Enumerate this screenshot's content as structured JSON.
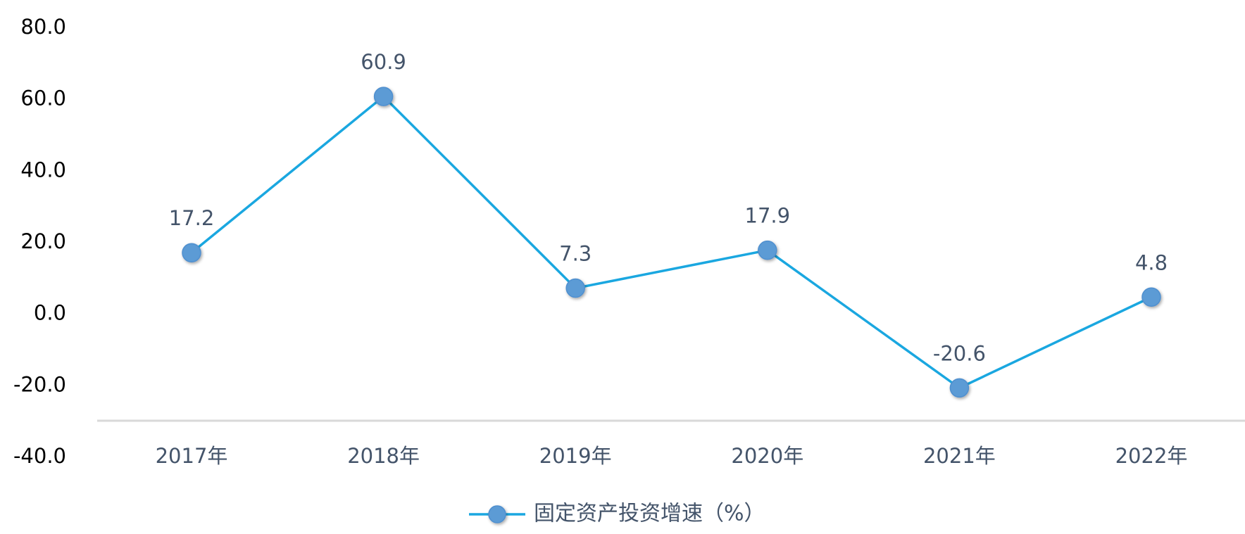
{
  "chart_data": {
    "type": "line",
    "categories": [
      "2017年",
      "2018年",
      "2019年",
      "2020年",
      "2021年",
      "2022年"
    ],
    "series": [
      {
        "name": "固定资产投资增速（%）",
        "values": [
          17.2,
          60.9,
          7.3,
          17.9,
          -20.6,
          4.8
        ],
        "labels": [
          "17.2",
          "60.9",
          "7.3",
          "17.9",
          "-20.6",
          "4.8"
        ],
        "color": "#1aa7e0",
        "marker_color": "#5b9bd5"
      }
    ],
    "yticks": [
      "80.0",
      "60.0",
      "40.0",
      "20.0",
      "0.0",
      "-20.0",
      "-40.0"
    ],
    "ytick_values": [
      80,
      60,
      40,
      20,
      0,
      -20,
      -40
    ],
    "ylim": [
      -40,
      80
    ],
    "grid": false,
    "legend": "bottom-center",
    "axis_color": "#d9d9d9"
  }
}
